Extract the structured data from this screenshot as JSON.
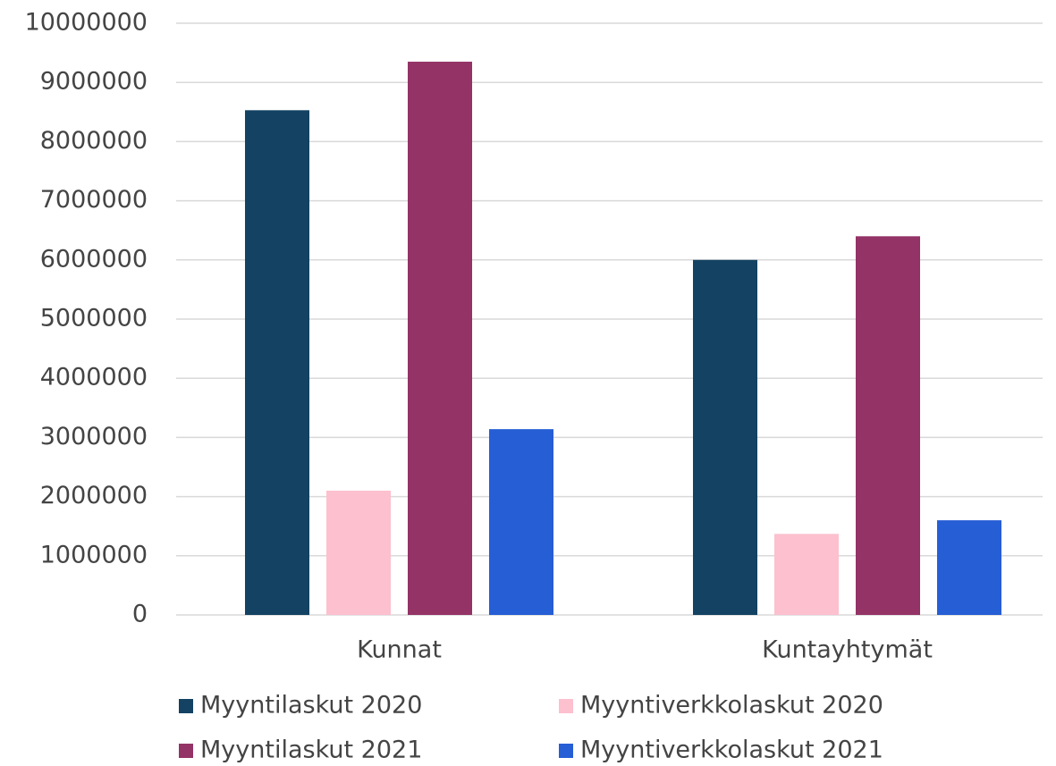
{
  "chart_data": {
    "type": "bar",
    "categories": [
      "Kunnat",
      "Kuntayhtymät"
    ],
    "series": [
      {
        "name": "Myyntilaskut 2020",
        "color": "#134263",
        "values": [
          8530000,
          6000000
        ]
      },
      {
        "name": "Myyntiverkkolaskut 2020",
        "color": "#fcc0cf",
        "values": [
          2100000,
          1370000
        ]
      },
      {
        "name": "Myyntilaskut 2021",
        "color": "#933366",
        "values": [
          9350000,
          6400000
        ]
      },
      {
        "name": "Myyntiverkkolaskut 2021",
        "color": "#265ed5",
        "values": [
          3140000,
          1600000
        ]
      }
    ],
    "ylim": [
      0,
      10000000
    ],
    "yticks": [
      0,
      1000000,
      2000000,
      3000000,
      4000000,
      5000000,
      6000000,
      7000000,
      8000000,
      9000000,
      10000000
    ],
    "grid": true,
    "legend": "bottom"
  }
}
